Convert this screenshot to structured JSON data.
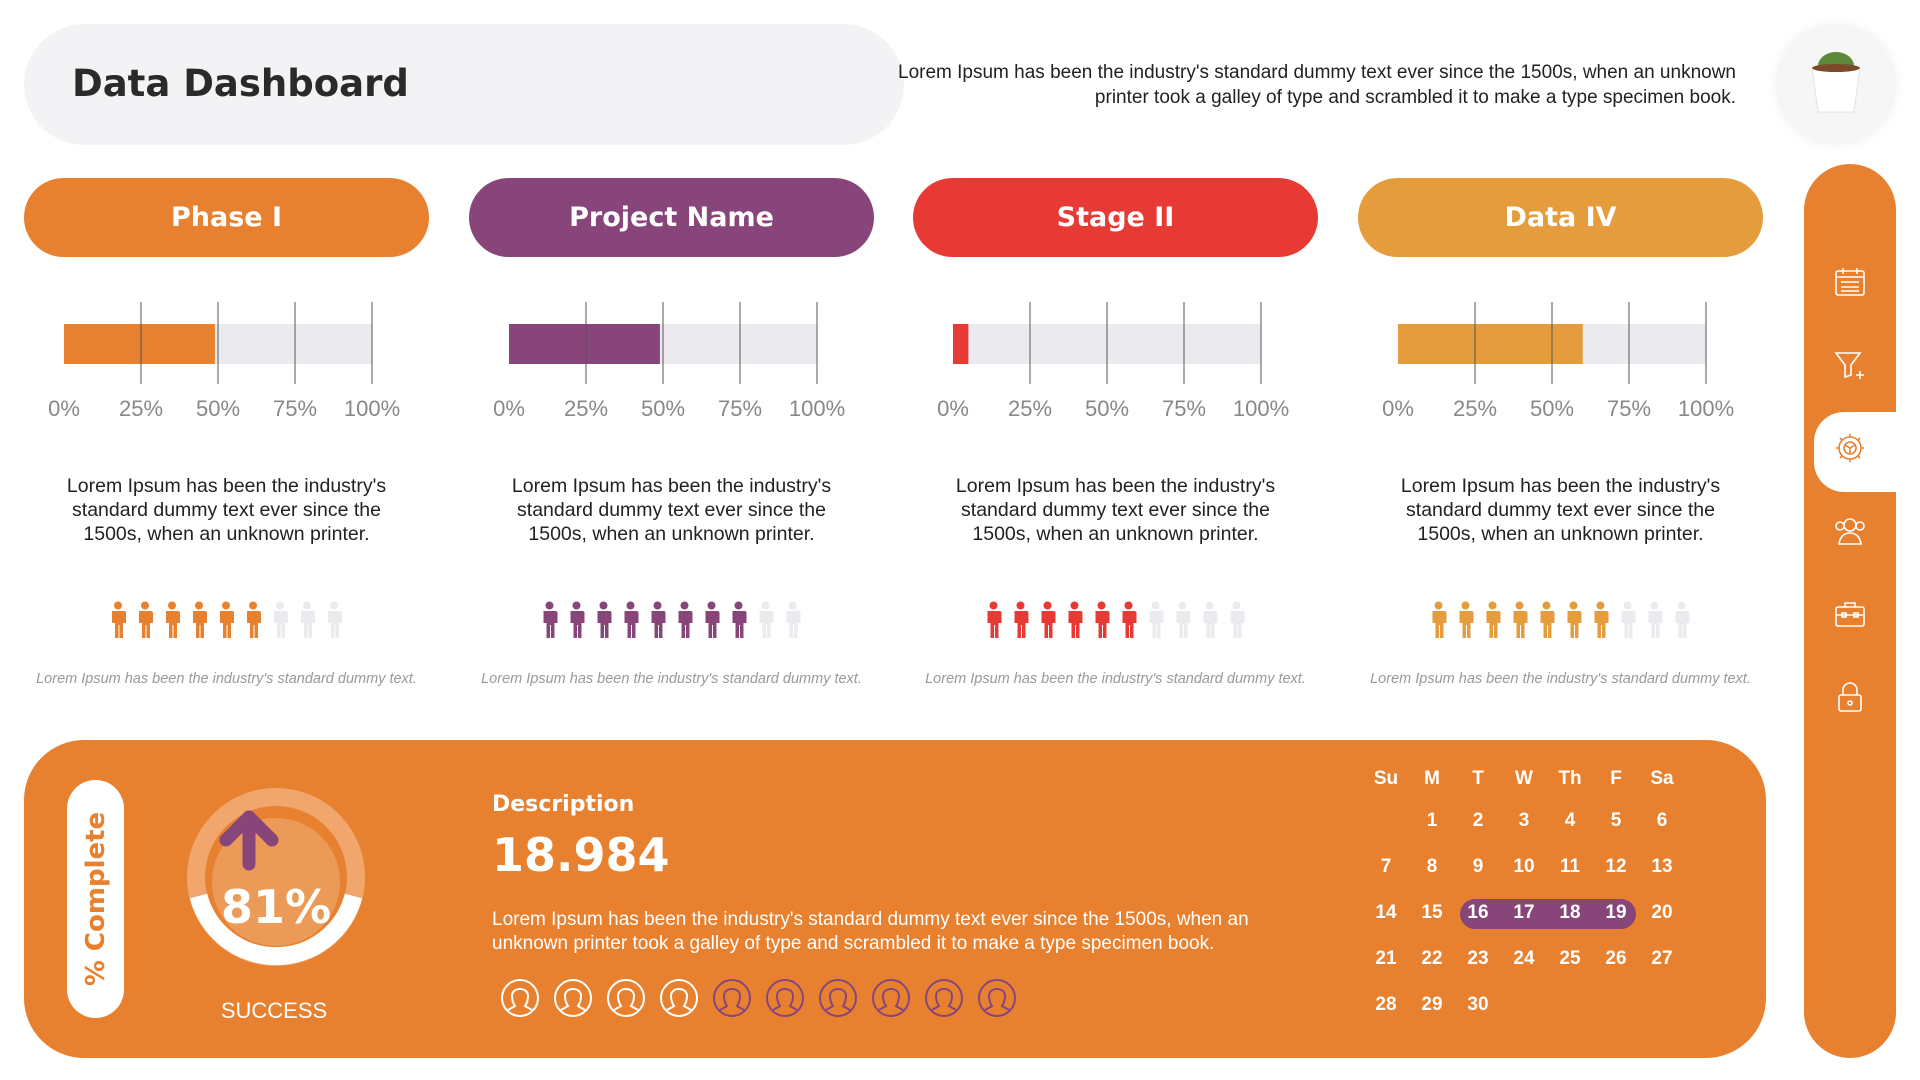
{
  "header": {
    "title": "Data Dashboard",
    "intro": "Lorem Ipsum has been the industry's standard dummy text ever since the 1500s, when an unknown printer took a galley of type and scrambled it to make a type specimen book."
  },
  "sidebar": {
    "items": [
      {
        "icon": "calendar-icon"
      },
      {
        "icon": "filter-add-icon"
      },
      {
        "icon": "settings-gear-icon",
        "active": true
      },
      {
        "icon": "users-icon"
      },
      {
        "icon": "toolbox-icon"
      },
      {
        "icon": "lock-icon"
      }
    ]
  },
  "axis_ticks": [
    "0%",
    "25%",
    "50%",
    "75%",
    "100%"
  ],
  "cards": [
    {
      "label": "Phase I",
      "color": "#e8812f",
      "progress": 49,
      "people_filled": 6,
      "people_total": 9,
      "text": "Lorem Ipsum has been the industry's standard dummy text ever since the 1500s, when an unknown printer.",
      "caption": "Lorem Ipsum has been the industry's standard dummy text."
    },
    {
      "label": "Project Name",
      "color": "#88457a",
      "progress": 49,
      "people_filled": 8,
      "people_total": 10,
      "text": "Lorem Ipsum has been the industry's standard dummy text ever since the 1500s, when an unknown printer.",
      "caption": "Lorem Ipsum has been the industry's standard dummy text."
    },
    {
      "label": "Stage II",
      "color": "#e83a35",
      "progress": 5,
      "people_filled": 6,
      "people_total": 10,
      "text": "Lorem Ipsum has been the industry's standard dummy text ever since the 1500s, when an unknown printer.",
      "caption": "Lorem Ipsum has been the industry's standard dummy text."
    },
    {
      "label": "Data IV",
      "color": "#e59c3c",
      "progress": 60,
      "people_filled": 7,
      "people_total": 10,
      "text": "Lorem Ipsum has been the industry's standard dummy text ever since the 1500s, when an unknown printer.",
      "caption": "Lorem Ipsum has been the industry's standard dummy text."
    }
  ],
  "bottom": {
    "complete_label": "% Complete",
    "percent": "81%",
    "status": "SUCCESS",
    "desc_title": "Description",
    "number": "18.984",
    "desc_text": "Lorem Ipsum has been the industry's standard dummy text ever since the 1500s, when an unknown printer took a galley of type and scrambled it to make a type specimen book.",
    "avatars_white": 4,
    "avatars_total": 10,
    "calendar": {
      "days": [
        "Su",
        "M",
        "T",
        "W",
        "Th",
        "F",
        "Sa"
      ],
      "start_weekday": 1,
      "days_in_month": 30,
      "highlight": [
        16,
        17,
        18,
        19
      ]
    }
  },
  "colors": {
    "accent": "#e8812f",
    "purple": "#88457a",
    "track": "#ebebef",
    "inactive_person": "#ebebef"
  }
}
